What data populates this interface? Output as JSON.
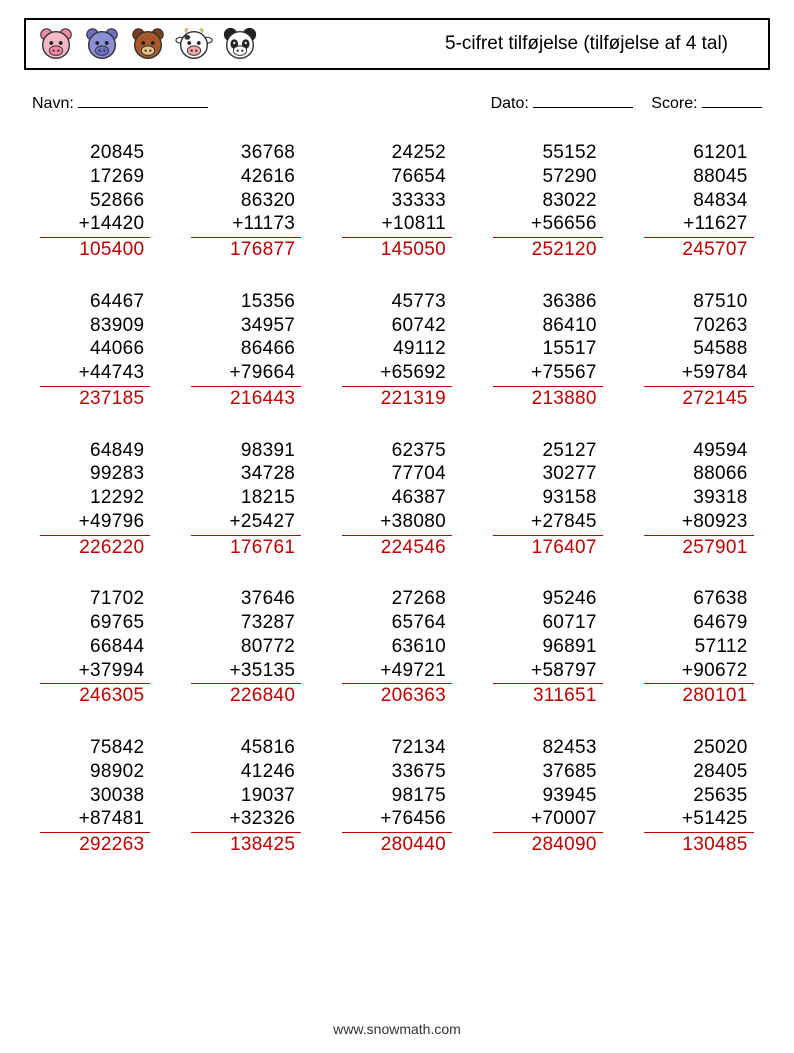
{
  "header": {
    "title": "5-cifret tilføjelse (tilføjelse af 4 tal)",
    "animals": [
      {
        "name": "pig",
        "face": "#f7b6c8",
        "ear": "#f48aa8",
        "snout": "#f48aa8",
        "outline": "#333333"
      },
      {
        "name": "hippo",
        "face": "#8a8fd6",
        "ear": "#6b70c4",
        "snout": "#6b70c4",
        "outline": "#333333"
      },
      {
        "name": "bear",
        "face": "#a85a2a",
        "ear": "#7a3e18",
        "snout": "#e6c28a",
        "outline": "#333333"
      },
      {
        "name": "cow",
        "face": "#ffffff",
        "ear": "#333333",
        "snout": "#f2a6a6",
        "outline": "#333333",
        "horn": "#d4b56a"
      },
      {
        "name": "panda",
        "face": "#ffffff",
        "ear": "#222222",
        "snout": "#ffffff",
        "outline": "#333333"
      }
    ]
  },
  "meta": {
    "name_label": "Navn:",
    "date_label": "Dato:",
    "score_label": "Score:"
  },
  "style": {
    "answer_color": "#c00000",
    "text_color": "#000000",
    "underline_color": "#c00000",
    "font_size_problem": 19,
    "cols": 5,
    "rows": 5,
    "operator": "+"
  },
  "problems": [
    [
      {
        "nums": [
          "20845",
          "17269",
          "52866",
          "14420"
        ],
        "ans": "105400"
      },
      {
        "nums": [
          "36768",
          "42616",
          "86320",
          "11173"
        ],
        "ans": "176877"
      },
      {
        "nums": [
          "24252",
          "76654",
          "33333",
          "10811"
        ],
        "ans": "145050"
      },
      {
        "nums": [
          "55152",
          "57290",
          "83022",
          "56656"
        ],
        "ans": "252120"
      },
      {
        "nums": [
          "61201",
          "88045",
          "84834",
          "11627"
        ],
        "ans": "245707"
      }
    ],
    [
      {
        "nums": [
          "64467",
          "83909",
          "44066",
          "44743"
        ],
        "ans": "237185"
      },
      {
        "nums": [
          "15356",
          "34957",
          "86466",
          "79664"
        ],
        "ans": "216443"
      },
      {
        "nums": [
          "45773",
          "60742",
          "49112",
          "65692"
        ],
        "ans": "221319"
      },
      {
        "nums": [
          "36386",
          "86410",
          "15517",
          "75567"
        ],
        "ans": "213880"
      },
      {
        "nums": [
          "87510",
          "70263",
          "54588",
          "59784"
        ],
        "ans": "272145"
      }
    ],
    [
      {
        "nums": [
          "64849",
          "99283",
          "12292",
          "49796"
        ],
        "ans": "226220"
      },
      {
        "nums": [
          "98391",
          "34728",
          "18215",
          "25427"
        ],
        "ans": "176761"
      },
      {
        "nums": [
          "62375",
          "77704",
          "46387",
          "38080"
        ],
        "ans": "224546"
      },
      {
        "nums": [
          "25127",
          "30277",
          "93158",
          "27845"
        ],
        "ans": "176407"
      },
      {
        "nums": [
          "49594",
          "88066",
          "39318",
          "80923"
        ],
        "ans": "257901"
      }
    ],
    [
      {
        "nums": [
          "71702",
          "69765",
          "66844",
          "37994"
        ],
        "ans": "246305"
      },
      {
        "nums": [
          "37646",
          "73287",
          "80772",
          "35135"
        ],
        "ans": "226840"
      },
      {
        "nums": [
          "27268",
          "65764",
          "63610",
          "49721"
        ],
        "ans": "206363"
      },
      {
        "nums": [
          "95246",
          "60717",
          "96891",
          "58797"
        ],
        "ans": "311651"
      },
      {
        "nums": [
          "67638",
          "64679",
          "57112",
          "90672"
        ],
        "ans": "280101"
      }
    ],
    [
      {
        "nums": [
          "75842",
          "98902",
          "30038",
          "87481"
        ],
        "ans": "292263"
      },
      {
        "nums": [
          "45816",
          "41246",
          "19037",
          "32326"
        ],
        "ans": "138425"
      },
      {
        "nums": [
          "72134",
          "33675",
          "98175",
          "76456"
        ],
        "ans": "280440"
      },
      {
        "nums": [
          "82453",
          "37685",
          "93945",
          "70007"
        ],
        "ans": "284090"
      },
      {
        "nums": [
          "25020",
          "28405",
          "25635",
          "51425"
        ],
        "ans": "130485"
      }
    ]
  ],
  "footer": "www.snowmath.com"
}
